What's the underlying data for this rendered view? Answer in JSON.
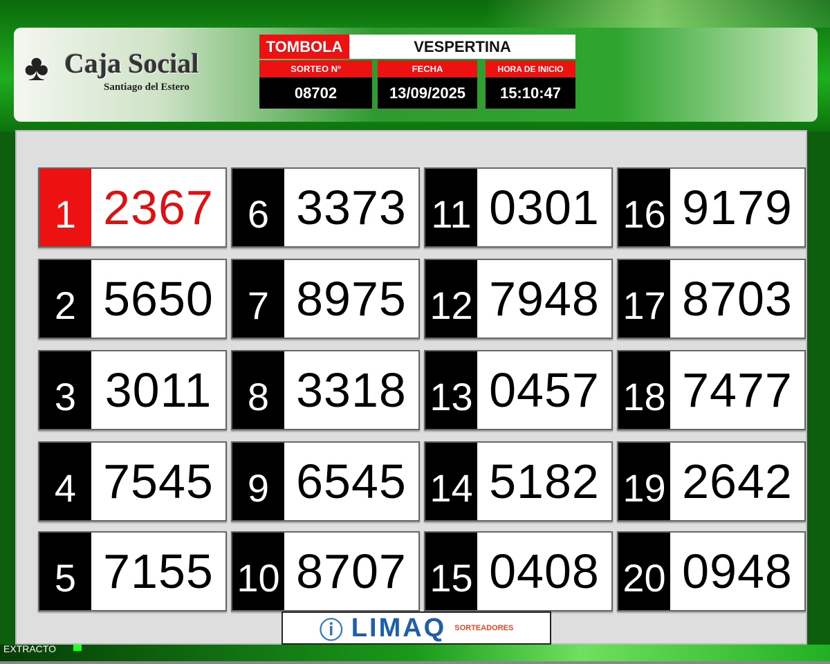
{
  "logo": {
    "name": "Caja Social",
    "subtitle": "Santiago del Estero"
  },
  "draw": {
    "game": "TOMBOLA",
    "session": "VESPERTINA",
    "sorteo_label": "SORTEO Nº",
    "sorteo": "08702",
    "fecha_label": "FECHA",
    "fecha": "13/09/2025",
    "hora_label": "HORA DE INICIO",
    "hora": "15:10:47"
  },
  "results": [
    {
      "pos": "1",
      "value": "2367"
    },
    {
      "pos": "2",
      "value": "5650"
    },
    {
      "pos": "3",
      "value": "3011"
    },
    {
      "pos": "4",
      "value": "7545"
    },
    {
      "pos": "5",
      "value": "7155"
    },
    {
      "pos": "6",
      "value": "3373"
    },
    {
      "pos": "7",
      "value": "8975"
    },
    {
      "pos": "8",
      "value": "3318"
    },
    {
      "pos": "9",
      "value": "6545"
    },
    {
      "pos": "10",
      "value": "8707"
    },
    {
      "pos": "11",
      "value": "0301"
    },
    {
      "pos": "12",
      "value": "7948"
    },
    {
      "pos": "13",
      "value": "0457"
    },
    {
      "pos": "14",
      "value": "5182"
    },
    {
      "pos": "15",
      "value": "0408"
    },
    {
      "pos": "16",
      "value": "9179"
    },
    {
      "pos": "17",
      "value": "8703"
    },
    {
      "pos": "18",
      "value": "7477"
    },
    {
      "pos": "19",
      "value": "2642"
    },
    {
      "pos": "20",
      "value": "0948"
    }
  ],
  "sponsor": {
    "brand": "LIMAQ",
    "sub": "SORTEADORES"
  },
  "footer": {
    "label": "EXTRACTO"
  },
  "colors": {
    "highlight": "#ee1111",
    "background": "#1fae1f"
  }
}
